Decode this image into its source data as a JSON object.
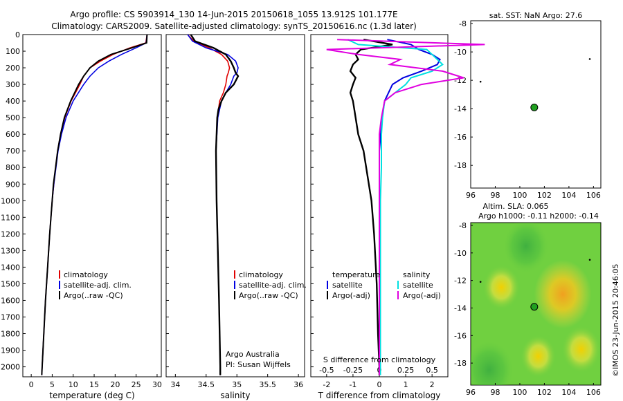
{
  "header": {
    "line1": "Argo profile: CS 5903914_130 14-Jun-2015 20150618_1055 13.912S 101.177E",
    "line2": "Climatology: CARS2009. Satellite-adjusted climatology: synTS_20150616.nc (1.3d later)"
  },
  "side_label": "©IMOS 23-Jun-2015 20:46:05",
  "colors": {
    "climatology": "#e00000",
    "satellite": "#0000e0",
    "argo": "#000000",
    "sal_satellite": "#00e0e0",
    "sal_argo": "#e000e0",
    "float_marker": "#20a020",
    "map_background": "#70d040"
  },
  "chart_data": [
    {
      "id": "temperature",
      "type": "line",
      "xlabel": "temperature (deg C)",
      "ylabel": "",
      "xlim": [
        -2,
        31
      ],
      "ylim": [
        2060,
        0
      ],
      "xticks": [
        0,
        5,
        10,
        15,
        20,
        25,
        30
      ],
      "yticks": [
        0,
        100,
        200,
        300,
        400,
        500,
        600,
        700,
        800,
        900,
        1000,
        1100,
        1200,
        1300,
        1400,
        1500,
        1600,
        1700,
        1800,
        1900,
        2000
      ],
      "legend": [
        "climatology",
        "satellite-adj. clim.",
        "Argo(..raw -QC)"
      ],
      "legend_position": "lower-center",
      "depth": [
        0,
        50,
        80,
        120,
        160,
        200,
        250,
        300,
        400,
        500,
        600,
        700,
        800,
        900,
        1000,
        1200,
        1400,
        1600,
        1800,
        2000,
        2050
      ],
      "series": [
        {
          "name": "climatology",
          "values": [
            27.6,
            27.3,
            23.5,
            19.5,
            16.5,
            14.0,
            12.5,
            11.6,
            9.5,
            8.0,
            7.0,
            6.3,
            5.8,
            5.4,
            5.0,
            4.4,
            3.9,
            3.4,
            3.0,
            2.6,
            2.5
          ]
        },
        {
          "name": "satellite-adj. clim.",
          "values": [
            27.6,
            27.4,
            25.0,
            21.5,
            18.5,
            16.0,
            14.0,
            12.5,
            10.0,
            8.3,
            7.2,
            6.4,
            5.9,
            5.4,
            5.0,
            4.4,
            3.9,
            3.4,
            3.0,
            2.6,
            2.5
          ]
        },
        {
          "name": "Argo(..raw -QC)",
          "values": [
            27.6,
            27.5,
            24.0,
            19.0,
            16.0,
            14.0,
            12.5,
            11.3,
            9.4,
            7.9,
            7.0,
            6.3,
            5.8,
            5.3,
            5.0,
            4.4,
            3.9,
            3.4,
            3.0,
            2.6,
            2.5
          ]
        }
      ]
    },
    {
      "id": "salinity",
      "type": "line",
      "xlabel": "salinity",
      "xlim": [
        33.85,
        36.1
      ],
      "ylim": [
        2060,
        0
      ],
      "xticks": [
        34,
        34.5,
        35,
        35.5,
        36
      ],
      "legend": [
        "climatology",
        "satellite-adj. clim.",
        "Argo(..raw -QC)"
      ],
      "legend_position": "lower-center",
      "annotations": [
        "Argo Australia",
        "PI: Susan Wijffels"
      ],
      "depth": [
        0,
        40,
        80,
        120,
        160,
        200,
        230,
        250,
        300,
        350,
        400,
        450,
        500,
        700,
        1000,
        1300,
        1600,
        1800,
        2000,
        2050
      ],
      "series": [
        {
          "name": "climatology",
          "values": [
            34.2,
            34.3,
            34.55,
            34.75,
            34.85,
            34.88,
            34.86,
            34.84,
            34.82,
            34.78,
            34.72,
            34.7,
            34.68,
            34.66,
            34.67,
            34.69,
            34.71,
            34.72,
            34.73,
            34.73
          ]
        },
        {
          "name": "satellite-adj. clim.",
          "values": [
            34.2,
            34.28,
            34.5,
            34.85,
            34.98,
            35.02,
            35.0,
            34.95,
            34.9,
            34.82,
            34.75,
            34.72,
            34.69,
            34.66,
            34.67,
            34.69,
            34.71,
            34.72,
            34.73,
            34.73
          ]
        },
        {
          "name": "Argo(..raw -QC)",
          "values": [
            34.25,
            34.32,
            34.62,
            34.82,
            34.9,
            34.95,
            34.98,
            35.02,
            34.95,
            34.82,
            34.75,
            34.7,
            34.68,
            34.66,
            34.67,
            34.69,
            34.71,
            34.72,
            34.73,
            34.73
          ]
        }
      ]
    },
    {
      "id": "difference",
      "type": "line",
      "xlabel": "T difference from climatology",
      "xlabel_top": "S difference from climatology",
      "xlim": [
        -2.6,
        2.6
      ],
      "ylim": [
        2060,
        0
      ],
      "xticks_t": [
        -2,
        -1,
        0,
        1,
        2
      ],
      "xticks_s": [
        "-0.5",
        "-0.25",
        "0",
        "0.25",
        "0.5"
      ],
      "legend_headers": [
        "temperature",
        "salinity"
      ],
      "legend": [
        "satellite",
        "Argo(-adj)",
        "satellite",
        "Argo(-adj)"
      ],
      "legend_position": "lower-center",
      "depth": [
        30,
        60,
        90,
        120,
        150,
        180,
        220,
        260,
        300,
        350,
        400,
        500,
        600,
        700,
        800,
        1000,
        1200,
        1500,
        1800,
        2000,
        2050
      ],
      "series": [
        {
          "name": "T satellite",
          "values": [
            0.3,
            1.2,
            1.5,
            2.0,
            2.3,
            2.2,
            1.6,
            0.9,
            0.5,
            0.35,
            0.2,
            0.1,
            0.05,
            0.0,
            0.0,
            0.0,
            0.0,
            0.0,
            0.0,
            0.0,
            0.0
          ]
        },
        {
          "name": "T Argo(-adj)",
          "values": [
            -0.6,
            0.5,
            -0.7,
            -0.9,
            -0.8,
            -1.0,
            -1.1,
            -0.9,
            -1.0,
            -1.1,
            -1.0,
            -0.9,
            -0.8,
            -0.6,
            -0.5,
            -0.3,
            -0.2,
            -0.1,
            -0.05,
            0.0,
            0.0
          ]
        },
        {
          "name": "S satellite",
          "values": [
            -0.3,
            -0.2,
            0.45,
            0.5,
            0.55,
            0.6,
            0.5,
            0.3,
            0.25,
            0.15,
            0.05,
            0.03,
            0.02,
            0.02,
            0.02,
            0.01,
            0.01,
            0.01,
            0.01,
            0.01,
            0.01
          ]
        },
        {
          "name": "S Argo(-adj)",
          "values": [
            -0.4,
            1.0,
            -0.5,
            -0.2,
            0.2,
            0.1,
            0.6,
            0.8,
            0.4,
            0.15,
            0.05,
            0.02,
            0.0,
            0.0,
            0.0,
            0.0,
            0.0,
            0.0,
            0.0,
            0.0,
            0.0
          ]
        }
      ]
    },
    {
      "id": "sst_map",
      "type": "scatter",
      "title": "sat. SST: NaN Argo: 27.6",
      "xlim": [
        96,
        106.6
      ],
      "ylim": [
        -19.6,
        -7.8
      ],
      "xticks": [
        96,
        98,
        100,
        102,
        104,
        106
      ],
      "yticks": [
        -8,
        -10,
        -12,
        -14,
        -16,
        -18
      ],
      "float_position": {
        "lon": 101.177,
        "lat": -13.912
      },
      "other_floats": [
        {
          "lon": 96.8,
          "lat": -12.1
        },
        {
          "lon": 105.7,
          "lat": -10.5
        }
      ]
    },
    {
      "id": "sla_map",
      "type": "heatmap",
      "title": "Altim. SLA: 0.065",
      "subtitle": "Argo h1000: -0.11 h2000: -0.14",
      "xlim": [
        96,
        106.6
      ],
      "ylim": [
        -19.6,
        -7.8
      ],
      "xticks": [
        96,
        98,
        100,
        102,
        104,
        106
      ],
      "yticks": [
        -8,
        -10,
        -12,
        -14,
        -16,
        -18
      ],
      "float_position": {
        "lon": 101.177,
        "lat": -13.912
      },
      "other_floats": [
        {
          "lon": 96.8,
          "lat": -12.1
        },
        {
          "lon": 105.7,
          "lat": -10.5
        }
      ],
      "anomalies": [
        {
          "lon": 103.5,
          "lat": -13.0,
          "value": 0.9
        },
        {
          "lon": 100.5,
          "lat": -9.5,
          "value": -0.6
        },
        {
          "lon": 97.5,
          "lat": -18.5,
          "value": -0.7
        },
        {
          "lon": 98.5,
          "lat": -12.5,
          "value": 0.35
        },
        {
          "lon": 105.0,
          "lat": -17.0,
          "value": 0.4
        },
        {
          "lon": 101.5,
          "lat": -17.5,
          "value": 0.3
        }
      ]
    }
  ]
}
